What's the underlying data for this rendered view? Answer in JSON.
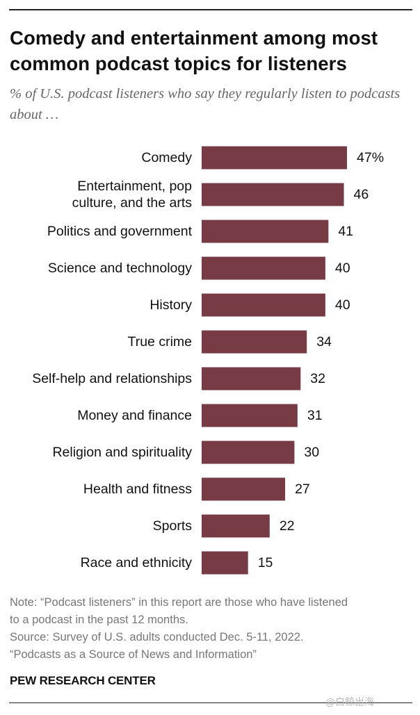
{
  "header": {
    "title": "Comedy and entertainment among most common podcast topics for listeners",
    "subtitle": "% of U.S. podcast listeners who say they regularly listen to podcasts about …"
  },
  "chart_data": {
    "type": "bar",
    "orientation": "horizontal",
    "title": "Comedy and entertainment among most common podcast topics for listeners",
    "xlabel": "",
    "ylabel": "",
    "xlim": [
      0,
      50
    ],
    "color": "#763b45",
    "categories": [
      "Comedy",
      "Entertainment, pop culture, and the arts",
      "Politics and government",
      "Science and technology",
      "History",
      "True crime",
      "Self-help and relationships",
      "Money and finance",
      "Religion and spirituality",
      "Health and fitness",
      "Sports",
      "Race and ethnicity"
    ],
    "category_lines": [
      [
        "Comedy"
      ],
      [
        "Entertainment, pop",
        "culture, and the arts"
      ],
      [
        "Politics and government"
      ],
      [
        "Science and technology"
      ],
      [
        "History"
      ],
      [
        "True crime"
      ],
      [
        "Self-help and relationships"
      ],
      [
        "Money and finance"
      ],
      [
        "Religion and spirituality"
      ],
      [
        "Health and fitness"
      ],
      [
        "Sports"
      ],
      [
        "Race and ethnicity"
      ]
    ],
    "values": [
      47,
      46,
      41,
      40,
      40,
      34,
      32,
      31,
      30,
      27,
      22,
      15
    ],
    "value_labels": [
      "47%",
      "46",
      "41",
      "40",
      "40",
      "34",
      "32",
      "31",
      "30",
      "27",
      "22",
      "15"
    ]
  },
  "footer": {
    "note_line1": "Note: “Podcast listeners” in this report are those who have listened",
    "note_line2": "to a podcast in the past 12 months.",
    "source_line1": "Source: Survey of U.S. adults conducted Dec. 5-11, 2022.",
    "source_line2": "“Podcasts as a Source of News and Information”",
    "brand": "PEW RESEARCH CENTER",
    "watermark": "@白鲸出海"
  }
}
